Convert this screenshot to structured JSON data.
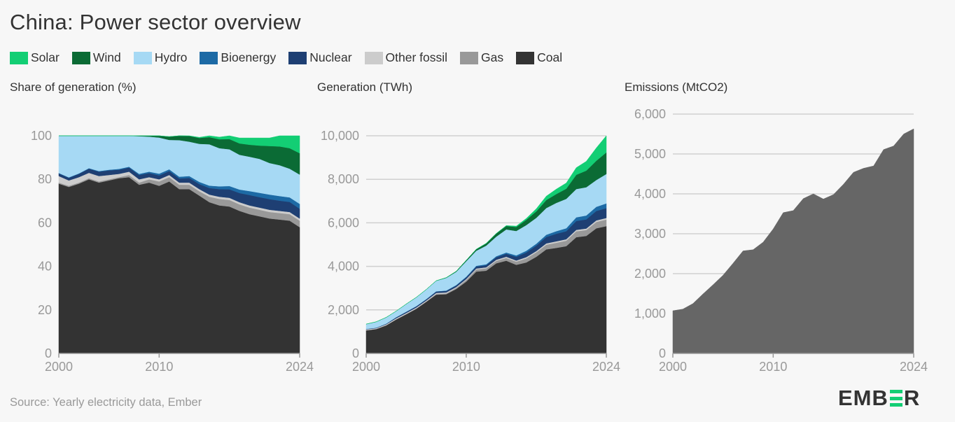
{
  "title": "China: Power sector overview",
  "legend": [
    {
      "label": "Solar",
      "color": "#13ce74"
    },
    {
      "label": "Wind",
      "color": "#0b6b35"
    },
    {
      "label": "Hydro",
      "color": "#a6d9f4"
    },
    {
      "label": "Bioenergy",
      "color": "#1d6aa5"
    },
    {
      "label": "Nuclear",
      "color": "#1e3f73"
    },
    {
      "label": "Other fossil",
      "color": "#cccccc"
    },
    {
      "label": "Gas",
      "color": "#999999"
    },
    {
      "label": "Coal",
      "color": "#333333"
    }
  ],
  "source": "Source: Yearly electricity data, Ember",
  "logo": {
    "prefix": "EMB",
    "suffix": "R"
  },
  "chart_data": [
    {
      "id": "share",
      "type": "area",
      "stacked": true,
      "title": "Share of generation (%)",
      "xlabel": "",
      "ylabel": "",
      "x": [
        2000,
        2001,
        2002,
        2003,
        2004,
        2005,
        2006,
        2007,
        2008,
        2009,
        2010,
        2011,
        2012,
        2013,
        2014,
        2015,
        2016,
        2017,
        2018,
        2019,
        2020,
        2021,
        2022,
        2023,
        2024
      ],
      "xticks": [
        "2000",
        "2010",
        "2024"
      ],
      "yticks": [
        "0",
        "20",
        "40",
        "60",
        "80",
        "100"
      ],
      "ylim": [
        0,
        100
      ],
      "grid": false,
      "series": [
        {
          "name": "Coal",
          "color": "#333333",
          "values": [
            78,
            76.5,
            78,
            80,
            78.5,
            79.5,
            80.5,
            81,
            77.5,
            78.5,
            77,
            79,
            75.5,
            75.5,
            72.5,
            69.5,
            68,
            67.5,
            65.5,
            64,
            63,
            62,
            61.5,
            61,
            58
          ]
        },
        {
          "name": "Gas",
          "color": "#999999",
          "values": [
            0.5,
            0.5,
            0.5,
            0.5,
            0.5,
            0.5,
            0.5,
            1,
            1,
            1.5,
            2,
            2,
            2,
            2,
            2,
            2.5,
            3,
            3,
            3,
            3,
            3,
            3,
            3,
            3,
            3
          ]
        },
        {
          "name": "Other fossil",
          "color": "#cccccc",
          "values": [
            3,
            2.5,
            2.5,
            2.5,
            2.5,
            2,
            1.5,
            1.5,
            1.5,
            1,
            1,
            1,
            1,
            1,
            1,
            1,
            1,
            1,
            1,
            1,
            1,
            1,
            1,
            1,
            1
          ]
        },
        {
          "name": "Nuclear",
          "color": "#1e3f73",
          "values": [
            1.2,
            1.2,
            1.5,
            1.9,
            2,
            2.1,
            1.9,
            1.9,
            2,
            1.9,
            1.8,
            1.8,
            1.9,
            2.1,
            2.3,
            3,
            3.5,
            3.9,
            4.2,
            4.8,
            4.8,
            4.9,
            4.7,
            4.6,
            4.5
          ]
        },
        {
          "name": "Bioenergy",
          "color": "#1d6aa5",
          "values": [
            0.2,
            0.2,
            0.2,
            0.2,
            0.3,
            0.3,
            0.4,
            0.4,
            0.5,
            0.6,
            0.8,
            0.8,
            0.8,
            0.9,
            1,
            1.1,
            1.3,
            1.5,
            1.6,
            1.8,
            2,
            2.1,
            2.1,
            2.1,
            2.2
          ]
        },
        {
          "name": "Hydro",
          "color": "#a6d9f4",
          "values": [
            17.1,
            19.1,
            17.3,
            14.9,
            16.2,
            15.6,
            15.2,
            14.7,
            17.3,
            16.1,
            16.6,
            13.5,
            16.8,
            15.8,
            17.5,
            19,
            17.5,
            16.9,
            16,
            15.8,
            15.6,
            14.5,
            14.2,
            13.2,
            13.5
          ]
        },
        {
          "name": "Wind",
          "color": "#0b6b35",
          "values": [
            0,
            0,
            0,
            0,
            0,
            0,
            0,
            0.1,
            0.2,
            0.5,
            0.9,
            1.5,
            2,
            2.6,
            2.7,
            3.3,
            4.1,
            4.7,
            5.2,
            5.5,
            6.1,
            7.8,
            8.6,
            9.4,
            9.8
          ]
        },
        {
          "name": "Solar",
          "color": "#13ce74",
          "values": [
            0,
            0,
            0,
            0,
            0,
            0,
            0,
            0,
            0,
            0,
            0,
            0,
            0,
            0.1,
            0.3,
            0.6,
            1,
            1.8,
            2.5,
            3.1,
            3.5,
            3.7,
            4.9,
            5.7,
            8
          ]
        }
      ]
    },
    {
      "id": "generation",
      "type": "area",
      "stacked": true,
      "title": "Generation (TWh)",
      "xlabel": "",
      "ylabel": "",
      "x": [
        2000,
        2001,
        2002,
        2003,
        2004,
        2005,
        2006,
        2007,
        2008,
        2009,
        2010,
        2011,
        2012,
        2013,
        2014,
        2015,
        2016,
        2017,
        2018,
        2019,
        2020,
        2021,
        2022,
        2023,
        2024
      ],
      "xticks": [
        "2000",
        "2010",
        "2024"
      ],
      "yticks": [
        "0",
        "2,000",
        "4,000",
        "6,000",
        "8,000",
        "10,000"
      ],
      "ylim": [
        0,
        10000
      ],
      "grid": true,
      "series": [
        {
          "name": "Coal",
          "color": "#333333",
          "values": [
            1060,
            1120,
            1290,
            1560,
            1800,
            2050,
            2370,
            2700,
            2720,
            2960,
            3300,
            3760,
            3800,
            4140,
            4260,
            4070,
            4180,
            4440,
            4780,
            4850,
            4930,
            5340,
            5400,
            5750,
            5850
          ]
        },
        {
          "name": "Gas",
          "color": "#999999",
          "values": [
            5,
            6,
            7,
            8,
            10,
            12,
            15,
            30,
            35,
            50,
            80,
            100,
            110,
            115,
            130,
            145,
            185,
            205,
            215,
            235,
            250,
            270,
            270,
            290,
            300
          ]
        },
        {
          "name": "Other fossil",
          "color": "#cccccc",
          "values": [
            40,
            36,
            40,
            48,
            50,
            48,
            45,
            50,
            50,
            40,
            40,
            45,
            48,
            50,
            55,
            55,
            58,
            60,
            62,
            65,
            67,
            70,
            70,
            72,
            75
          ]
        },
        {
          "name": "Nuclear",
          "color": "#1e3f73",
          "values": [
            17,
            17,
            25,
            43,
            50,
            53,
            55,
            62,
            68,
            70,
            74,
            86,
            97,
            112,
            133,
            171,
            213,
            248,
            295,
            348,
            366,
            408,
            418,
            435,
            450
          ]
        },
        {
          "name": "Bioenergy",
          "color": "#1d6aa5",
          "values": [
            3,
            3,
            3,
            5,
            7,
            8,
            10,
            12,
            15,
            20,
            30,
            35,
            40,
            50,
            60,
            65,
            80,
            90,
            100,
            120,
            140,
            165,
            180,
            190,
            220
          ]
        },
        {
          "name": "Hydro",
          "color": "#a6d9f4",
          "values": [
            220,
            270,
            290,
            280,
            350,
            400,
            440,
            480,
            580,
            610,
            710,
            690,
            860,
            900,
            1060,
            1120,
            1180,
            1190,
            1230,
            1300,
            1350,
            1300,
            1300,
            1230,
            1350
          ]
        },
        {
          "name": "Wind",
          "color": "#0b6b35",
          "values": [
            1,
            1,
            1,
            2,
            3,
            4,
            4,
            6,
            13,
            26,
            45,
            70,
            100,
            140,
            157,
            185,
            241,
            295,
            365,
            405,
            466,
            655,
            760,
            885,
            990
          ]
        },
        {
          "name": "Solar",
          "color": "#13ce74",
          "values": [
            0,
            0,
            0,
            0,
            0,
            0,
            0,
            0,
            0,
            0,
            1,
            3,
            5,
            9,
            21,
            39,
            66,
            118,
            177,
            224,
            261,
            327,
            427,
            590,
            830
          ]
        }
      ]
    },
    {
      "id": "emissions",
      "type": "area",
      "title": "Emissions (MtCO2)",
      "xlabel": "",
      "ylabel": "",
      "x": [
        2000,
        2001,
        2002,
        2003,
        2004,
        2005,
        2006,
        2007,
        2008,
        2009,
        2010,
        2011,
        2012,
        2013,
        2014,
        2015,
        2016,
        2017,
        2018,
        2019,
        2020,
        2021,
        2022,
        2023,
        2024
      ],
      "xticks": [
        "2000",
        "2010",
        "2024"
      ],
      "yticks": [
        "0",
        "1,000",
        "2,000",
        "3,000",
        "4,000",
        "5,000",
        "6,000"
      ],
      "ylim": [
        0,
        6000
      ],
      "grid": true,
      "series": [
        {
          "name": "Emissions",
          "color": "#666666",
          "values": [
            1070,
            1110,
            1250,
            1490,
            1720,
            1960,
            2260,
            2570,
            2600,
            2790,
            3120,
            3530,
            3580,
            3880,
            4000,
            3870,
            3980,
            4240,
            4540,
            4640,
            4700,
            5110,
            5200,
            5500,
            5630
          ]
        }
      ]
    }
  ]
}
